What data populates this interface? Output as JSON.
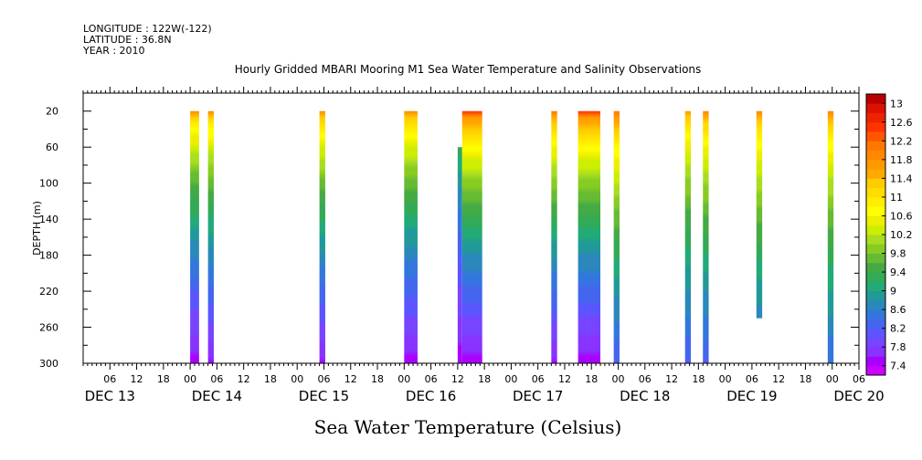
{
  "header": {
    "longitude": "LONGITUDE : 122W(-122)",
    "latitude": "LATITUDE : 36.8N",
    "year": "YEAR : 2010"
  },
  "chart_data": {
    "type": "heatmap",
    "title": "Hourly Gridded MBARI Mooring M1 Sea Water Temperature and Salinity Observations",
    "ylabel": "DEPTH (m)",
    "xlabel": "Sea Water Temperature (Celsius)",
    "ylim": [
      300,
      0
    ],
    "y_ticks": [
      20,
      60,
      100,
      140,
      180,
      220,
      260,
      300
    ],
    "x_range_hours": [
      0,
      174
    ],
    "x_ticks": [
      {
        "hours": 6,
        "label": "06"
      },
      {
        "hours": 12,
        "label": "12"
      },
      {
        "hours": 18,
        "label": "18"
      },
      {
        "hours": 24,
        "label": "00"
      },
      {
        "hours": 30,
        "label": "06"
      },
      {
        "hours": 36,
        "label": "12"
      },
      {
        "hours": 42,
        "label": "18"
      },
      {
        "hours": 48,
        "label": "00"
      },
      {
        "hours": 54,
        "label": "06"
      },
      {
        "hours": 60,
        "label": "12"
      },
      {
        "hours": 66,
        "label": "18"
      },
      {
        "hours": 72,
        "label": "00"
      },
      {
        "hours": 78,
        "label": "06"
      },
      {
        "hours": 84,
        "label": "12"
      },
      {
        "hours": 90,
        "label": "18"
      },
      {
        "hours": 96,
        "label": "00"
      },
      {
        "hours": 102,
        "label": "06"
      },
      {
        "hours": 108,
        "label": "12"
      },
      {
        "hours": 114,
        "label": "18"
      },
      {
        "hours": 120,
        "label": "00"
      },
      {
        "hours": 126,
        "label": "06"
      },
      {
        "hours": 132,
        "label": "12"
      },
      {
        "hours": 138,
        "label": "18"
      },
      {
        "hours": 144,
        "label": "00"
      },
      {
        "hours": 150,
        "label": "06"
      },
      {
        "hours": 156,
        "label": "12"
      },
      {
        "hours": 162,
        "label": "18"
      },
      {
        "hours": 168,
        "label": "00"
      },
      {
        "hours": 174,
        "label": "06"
      }
    ],
    "day_labels": [
      {
        "hours": 6,
        "label": "DEC 13"
      },
      {
        "hours": 30,
        "label": "DEC 14"
      },
      {
        "hours": 54,
        "label": "DEC 15"
      },
      {
        "hours": 78,
        "label": "DEC 16"
      },
      {
        "hours": 102,
        "label": "DEC 17"
      },
      {
        "hours": 126,
        "label": "DEC 18"
      },
      {
        "hours": 150,
        "label": "DEC 19"
      },
      {
        "hours": 174,
        "label": "DEC 20"
      }
    ],
    "colorbar": {
      "min": 7.2,
      "max": 13.2,
      "step": 0.2,
      "labels": [
        "13",
        "12.6",
        "12.2",
        "11.8",
        "11.4",
        "11",
        "10.6",
        "10.2",
        "9.8",
        "9.4",
        "9",
        "8.6",
        "8.2",
        "7.8",
        "7.4"
      ],
      "colors": [
        "#cc00ff",
        "#aa00ff",
        "#8833ff",
        "#7744ff",
        "#5a55ff",
        "#4466ee",
        "#3377dd",
        "#2a88bb",
        "#229999",
        "#22aa77",
        "#33aa55",
        "#44aa44",
        "#66bb33",
        "#88cc22",
        "#aadd22",
        "#ccee00",
        "#eeee00",
        "#ffff00",
        "#ffee00",
        "#ffdd00",
        "#ffcc00",
        "#ffaa00",
        "#ff9900",
        "#ff8800",
        "#ff7700",
        "#ff5500",
        "#ff3300",
        "#ee2200",
        "#dd1100",
        "#bb0000"
      ]
    },
    "profiles": [
      {
        "x_start": 24,
        "x_end": 26,
        "depth_top": 20,
        "depth_bottom": 300,
        "temp_surface": 11.8,
        "temp_bottom": 7.5
      },
      {
        "x_start": 28,
        "x_end": 29.3,
        "depth_top": 20,
        "depth_bottom": 300,
        "temp_surface": 11.8,
        "temp_bottom": 7.6
      },
      {
        "x_start": 53,
        "x_end": 54.3,
        "depth_top": 20,
        "depth_bottom": 300,
        "temp_surface": 11.9,
        "temp_bottom": 7.6
      },
      {
        "x_start": 72,
        "x_end": 75,
        "depth_top": 20,
        "depth_bottom": 300,
        "temp_surface": 11.9,
        "temp_bottom": 7.5
      },
      {
        "x_start": 84,
        "x_end": 85,
        "depth_top": 60,
        "depth_bottom": 300,
        "temp_surface": 10.2,
        "temp_bottom": 7.5
      },
      {
        "x_start": 85,
        "x_end": 89.5,
        "depth_top": 20,
        "depth_bottom": 300,
        "temp_surface": 12.4,
        "temp_bottom": 7.5
      },
      {
        "x_start": 105,
        "x_end": 106.3,
        "depth_top": 20,
        "depth_bottom": 300,
        "temp_surface": 12.2,
        "temp_bottom": 7.6
      },
      {
        "x_start": 111,
        "x_end": 116,
        "depth_top": 20,
        "depth_bottom": 300,
        "temp_surface": 12.4,
        "temp_bottom": 7.5
      },
      {
        "x_start": 119,
        "x_end": 120.3,
        "depth_top": 20,
        "depth_bottom": 300,
        "temp_surface": 12.2,
        "temp_bottom": 8.2
      },
      {
        "x_start": 135,
        "x_end": 136.3,
        "depth_top": 20,
        "depth_bottom": 300,
        "temp_surface": 11.7,
        "temp_bottom": 8.2
      },
      {
        "x_start": 139,
        "x_end": 140.3,
        "depth_top": 20,
        "depth_bottom": 300,
        "temp_surface": 11.9,
        "temp_bottom": 8.2
      },
      {
        "x_start": 151,
        "x_end": 152.3,
        "depth_top": 20,
        "depth_bottom": 250,
        "temp_surface": 11.9,
        "temp_bottom": 8.3
      },
      {
        "x_start": 167,
        "x_end": 168.3,
        "depth_top": 20,
        "depth_bottom": 300,
        "temp_surface": 11.9,
        "temp_bottom": 8.4
      }
    ]
  }
}
